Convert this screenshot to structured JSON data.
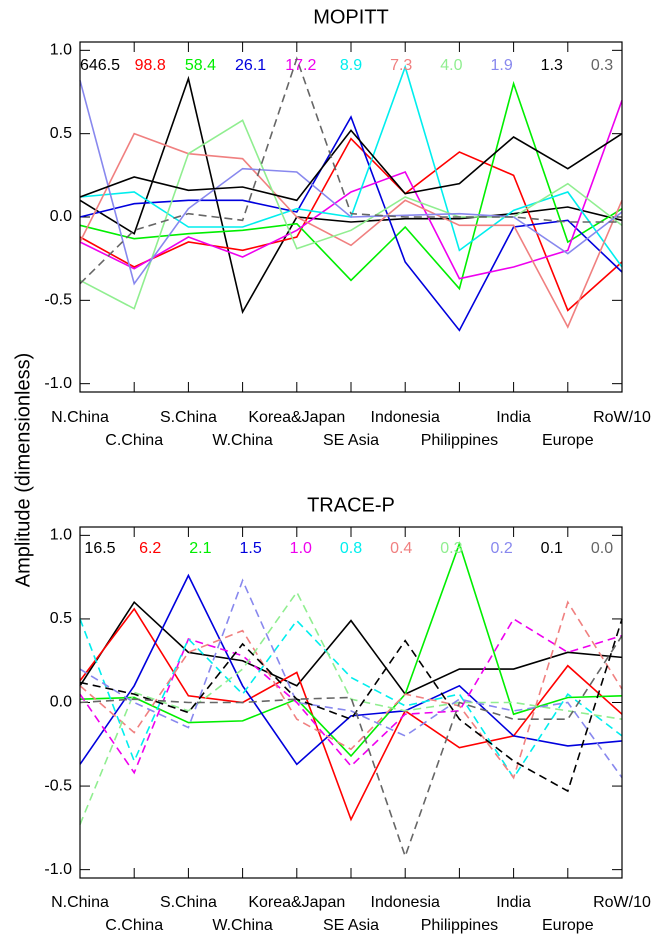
{
  "y_axis_label": "Amplitude (dimensionless)",
  "chart_data": [
    {
      "type": "line",
      "title": "MOPITT",
      "categories": [
        "N.China",
        "C.China",
        "S.China",
        "W.China",
        "Korea&Japan",
        "SE Asia",
        "Indonesia",
        "Philippines",
        "India",
        "Europe",
        "RoW/10"
      ],
      "ylim": [
        -1.05,
        1.05
      ],
      "yticks": [
        {
          "value": -1,
          "label": "-1.0"
        },
        -0.5,
        {
          "value": 0,
          "label": "0.0"
        },
        0.5,
        {
          "value": 1,
          "label": "1.0"
        }
      ],
      "series": [
        {
          "name": "646.5",
          "color": "#000000",
          "dashed": false,
          "values": [
            0.1,
            -0.1,
            0.83,
            -0.57,
            0.0,
            -0.03,
            -0.01,
            -0.01,
            0.02,
            0.06,
            -0.02
          ]
        },
        {
          "name": "98.8",
          "color": "#ff0000",
          "dashed": false,
          "values": [
            -0.12,
            -0.3,
            -0.15,
            -0.2,
            -0.12,
            0.47,
            0.14,
            0.39,
            0.25,
            -0.56,
            -0.27
          ]
        },
        {
          "name": "58.4",
          "color": "#00ee00",
          "dashed": false,
          "values": [
            -0.05,
            -0.13,
            -0.1,
            -0.08,
            -0.04,
            -0.38,
            -0.06,
            -0.43,
            0.8,
            -0.15,
            0.05
          ]
        },
        {
          "name": "26.1",
          "color": "#0000dd",
          "dashed": false,
          "values": [
            0.0,
            0.08,
            0.1,
            0.1,
            0.03,
            0.6,
            -0.27,
            -0.68,
            -0.06,
            -0.02,
            -0.33
          ]
        },
        {
          "name": "17.2",
          "color": "#ee00ee",
          "dashed": false,
          "values": [
            -0.15,
            -0.31,
            -0.12,
            -0.24,
            -0.08,
            0.15,
            0.27,
            -0.37,
            -0.3,
            -0.2,
            0.7
          ]
        },
        {
          "name": "8.9",
          "color": "#00eeee",
          "dashed": false,
          "values": [
            0.12,
            0.15,
            -0.06,
            -0.06,
            0.05,
            0.0,
            0.9,
            -0.2,
            0.04,
            0.15,
            -0.3
          ]
        },
        {
          "name": "7.3",
          "color": "#f08080",
          "dashed": false,
          "values": [
            -0.15,
            0.5,
            0.38,
            0.35,
            0.0,
            -0.17,
            0.1,
            -0.05,
            -0.05,
            -0.66,
            0.1
          ]
        },
        {
          "name": "4.0",
          "color": "#90ee90",
          "dashed": false,
          "values": [
            -0.38,
            -0.55,
            0.38,
            0.58,
            -0.19,
            -0.08,
            0.12,
            0.0,
            0.0,
            0.2,
            -0.05
          ]
        },
        {
          "name": "1.9",
          "color": "#8888ee",
          "dashed": false,
          "values": [
            0.82,
            -0.4,
            0.05,
            0.29,
            0.27,
            0.0,
            0.01,
            0.02,
            0.0,
            -0.22,
            0.03
          ]
        },
        {
          "name": "1.3",
          "color": "#000000",
          "dashed": false,
          "values": [
            0.12,
            0.24,
            0.16,
            0.18,
            0.1,
            0.52,
            0.14,
            0.2,
            0.48,
            0.29,
            0.5
          ]
        },
        {
          "name": "0.3",
          "color": "#666666",
          "dashed": true,
          "values": [
            -0.4,
            -0.08,
            0.02,
            -0.02,
            0.95,
            0.02,
            0.0,
            0.0,
            0.0,
            -0.03,
            -0.03
          ]
        }
      ]
    },
    {
      "type": "line",
      "title": "TRACE-P",
      "categories": [
        "N.China",
        "C.China",
        "S.China",
        "W.China",
        "Korea&Japan",
        "SE Asia",
        "Indonesia",
        "Philippines",
        "India",
        "Europe",
        "RoW/10"
      ],
      "ylim": [
        -1.05,
        1.05
      ],
      "yticks": [
        {
          "value": -1,
          "label": "-1.0"
        },
        -0.5,
        {
          "value": 0,
          "label": "0.0"
        },
        0.5,
        {
          "value": 1,
          "label": "1.0"
        }
      ],
      "series": [
        {
          "name": "16.5",
          "color": "#000000",
          "dashed": false,
          "values": [
            0.1,
            0.6,
            0.3,
            0.25,
            0.1,
            0.49,
            0.05,
            0.2,
            0.2,
            0.3,
            0.27
          ]
        },
        {
          "name": "6.2",
          "color": "#ff0000",
          "dashed": false,
          "values": [
            0.13,
            0.56,
            0.04,
            0.0,
            0.18,
            -0.7,
            -0.05,
            -0.27,
            -0.2,
            0.22,
            -0.07
          ]
        },
        {
          "name": "2.1",
          "color": "#00ee00",
          "dashed": false,
          "values": [
            0.02,
            0.03,
            -0.12,
            -0.11,
            0.02,
            -0.32,
            0.05,
            0.95,
            -0.07,
            0.03,
            0.04
          ]
        },
        {
          "name": "1.5",
          "color": "#0000dd",
          "dashed": false,
          "values": [
            -0.37,
            0.1,
            0.76,
            0.1,
            -0.37,
            -0.08,
            -0.05,
            0.1,
            -0.2,
            -0.26,
            -0.23
          ]
        },
        {
          "name": "1.0",
          "color": "#ee00ee",
          "dashed": true,
          "values": [
            0.05,
            -0.42,
            0.38,
            0.28,
            0.0,
            -0.38,
            -0.07,
            -0.05,
            0.5,
            0.3,
            0.4
          ]
        },
        {
          "name": "0.8",
          "color": "#00eeee",
          "dashed": true,
          "values": [
            0.5,
            -0.35,
            0.38,
            0.05,
            0.49,
            0.15,
            -0.02,
            0.05,
            -0.45,
            0.05,
            -0.2
          ]
        },
        {
          "name": "0.4",
          "color": "#f08080",
          "dashed": true,
          "values": [
            0.1,
            -0.18,
            0.3,
            0.43,
            -0.1,
            -0.28,
            0.05,
            -0.02,
            -0.45,
            0.6,
            0.08
          ]
        },
        {
          "name": "0.3",
          "color": "#90ee90",
          "dashed": true,
          "values": [
            -0.73,
            0.06,
            -0.05,
            0.2,
            0.66,
            0.02,
            -0.05,
            0.0,
            0.0,
            -0.05,
            -0.1
          ]
        },
        {
          "name": "0.2",
          "color": "#8888ee",
          "dashed": true,
          "values": [
            0.2,
            0.0,
            -0.15,
            0.73,
            0.0,
            -0.05,
            -0.2,
            0.02,
            -0.05,
            0.0,
            -0.45
          ]
        },
        {
          "name": "0.1",
          "color": "#000000",
          "dashed": true,
          "values": [
            0.12,
            0.05,
            -0.06,
            0.35,
            0.02,
            -0.1,
            0.37,
            -0.1,
            -0.35,
            -0.53,
            0.5
          ]
        },
        {
          "name": "0.0",
          "color": "#666666",
          "dashed": true,
          "values": [
            0.0,
            0.02,
            0.0,
            0.0,
            0.02,
            0.03,
            -0.92,
            0.0,
            -0.1,
            -0.1,
            0.4
          ]
        }
      ]
    }
  ]
}
